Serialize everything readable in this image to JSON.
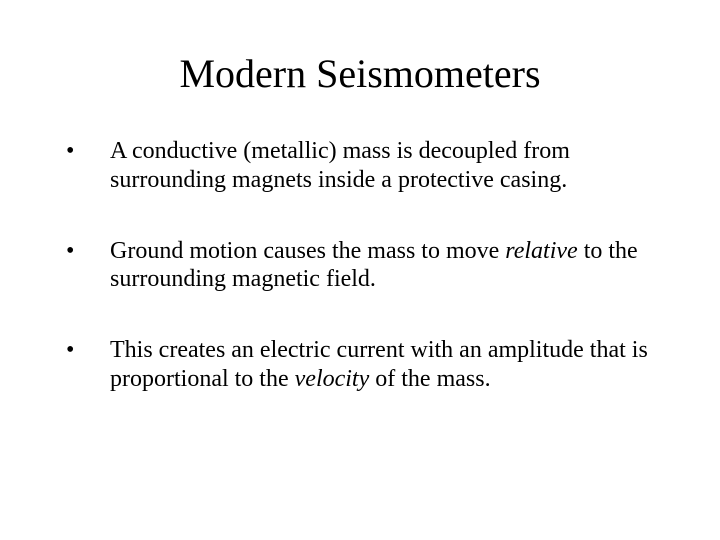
{
  "slide": {
    "title": "Modern Seismometers",
    "title_fontsize": 40,
    "body_fontsize": 24,
    "background_color": "#ffffff",
    "text_color": "#000000",
    "font_family": "Times New Roman",
    "bullet_marker": "•",
    "bullets": [
      {
        "pre": "A conductive (metallic) mass is decoupled from surrounding magnets inside a protective casing.",
        "italic": "",
        "post": ""
      },
      {
        "pre": "Ground motion causes the mass to move ",
        "italic": "relative",
        "post": " to the surrounding magnetic field."
      },
      {
        "pre": "This creates an electric current with an amplitude that is proportional to the ",
        "italic": "velocity",
        "post": " of the mass."
      }
    ]
  }
}
